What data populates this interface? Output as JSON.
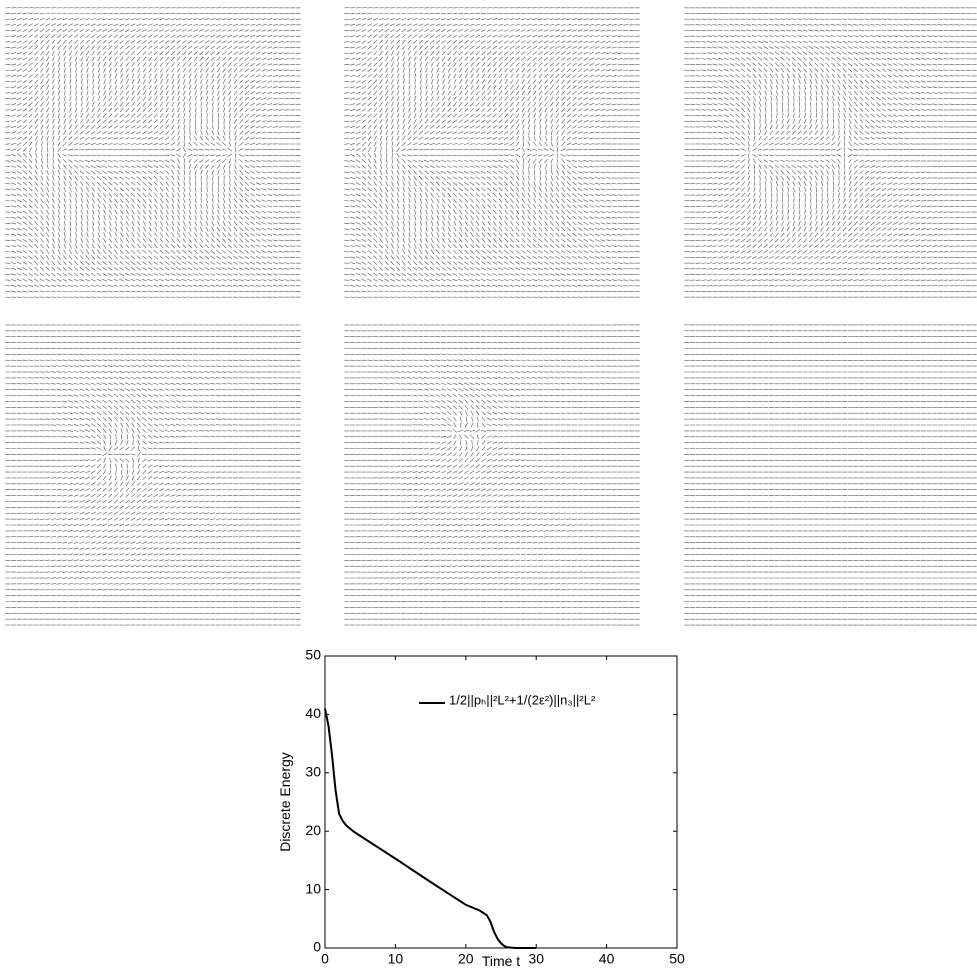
{
  "chart_data": {
    "type": "line",
    "y_label": "Discrete Energy",
    "x_label": "Time t",
    "xlim": [
      0,
      50
    ],
    "xticks": [
      0,
      10,
      20,
      30,
      40,
      50
    ],
    "ylim": [
      0,
      50
    ],
    "yticks": [
      0,
      10,
      20,
      30,
      40,
      50
    ],
    "legend": "upper right",
    "x": [
      0,
      0.5,
      1,
      1.5,
      2,
      2.5,
      3,
      4,
      5,
      10,
      15,
      20,
      22,
      23,
      23.5,
      24,
      24.5,
      25,
      25.5,
      26,
      27,
      28,
      30
    ],
    "series": [
      {
        "name": "1/2||pₕ||²L²+1/(2ε²)||n₃||²L²",
        "color": "#000000",
        "values": [
          41,
          38,
          33,
          27,
          23,
          21.8,
          21,
          20,
          19.2,
          15.3,
          11.3,
          7.4,
          6.4,
          5.6,
          4.5,
          2.8,
          1.6,
          0.8,
          0.3,
          0.1,
          0,
          0,
          0
        ]
      }
    ]
  }
}
